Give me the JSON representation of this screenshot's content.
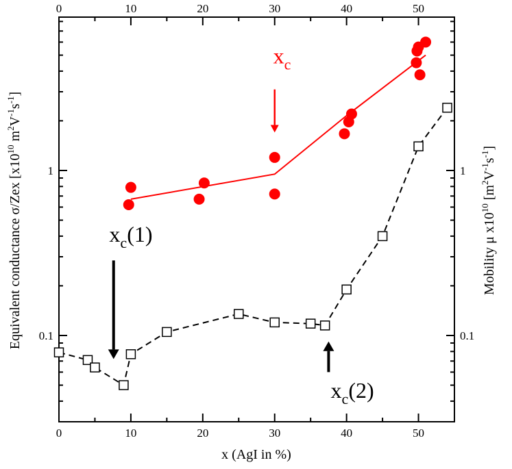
{
  "chart_data": {
    "type": "scatter",
    "xlabel": "x (AgI in %)",
    "ylabel_left_prefix": "Equivalent conductance ",
    "ylabel_left_sigma": "σ/Zex",
    "ylabel_left_unit": "[x10",
    "ylabel_left_exp": "10",
    "ylabel_left_tail": " m",
    "ylabel_left_sup2": "2",
    "ylabel_left_V": "V",
    "ylabel_left_supV": "-1",
    "ylabel_left_s": "s",
    "ylabel_left_sups": "-1",
    "ylabel_left_close": "]",
    "ylabel_right_prefix": "Mobility μ x10",
    "ylabel_right_exp": "10",
    "ylabel_right_unit": " [m",
    "ylabel_right_sup2": "2",
    "ylabel_right_V": "V",
    "ylabel_right_supV": "-1",
    "ylabel_right_s": "s",
    "ylabel_right_sups": "-1",
    "ylabel_right_close": "]",
    "xlim": [
      0,
      55
    ],
    "ylim_log": [
      0.03,
      8.5
    ],
    "x_ticks": [
      0,
      10,
      20,
      30,
      40,
      50
    ],
    "x_tick_labels": [
      "0",
      "10",
      "20",
      "30",
      "40",
      "50"
    ],
    "y_ticks": [
      0.1,
      1
    ],
    "y_tick_labels": [
      "0.1",
      "1"
    ],
    "series": [
      {
        "name": "Equivalent conductance (filled circles)",
        "color": "#ff0000",
        "marker": "filled-circle",
        "points": [
          {
            "x": 9.7,
            "y": 0.62
          },
          {
            "x": 10.0,
            "y": 0.79
          },
          {
            "x": 19.5,
            "y": 0.67
          },
          {
            "x": 20.2,
            "y": 0.84
          },
          {
            "x": 30.0,
            "y": 0.72
          },
          {
            "x": 30.0,
            "y": 1.2
          },
          {
            "x": 39.7,
            "y": 1.67
          },
          {
            "x": 40.3,
            "y": 1.97
          },
          {
            "x": 40.7,
            "y": 2.2
          },
          {
            "x": 49.7,
            "y": 4.5
          },
          {
            "x": 49.8,
            "y": 5.3
          },
          {
            "x": 50.2,
            "y": 3.8
          },
          {
            "x": 50.0,
            "y": 5.6
          },
          {
            "x": 51.0,
            "y": 6.0
          }
        ]
      },
      {
        "name": "Conductance fit",
        "color": "#ff0000",
        "style": "solid",
        "points": [
          {
            "x": 10,
            "y": 0.67
          },
          {
            "x": 30,
            "y": 0.95
          },
          {
            "x": 40,
            "y": 2.15
          },
          {
            "x": 51,
            "y": 5.0
          }
        ]
      },
      {
        "name": "Mobility (open squares)",
        "color": "#000000",
        "marker": "open-square",
        "style": "dashed",
        "points": [
          {
            "x": 0,
            "y": 0.079
          },
          {
            "x": 4,
            "y": 0.071
          },
          {
            "x": 5,
            "y": 0.064
          },
          {
            "x": 9,
            "y": 0.05
          },
          {
            "x": 10,
            "y": 0.077
          },
          {
            "x": 15,
            "y": 0.105
          },
          {
            "x": 25,
            "y": 0.135
          },
          {
            "x": 30,
            "y": 0.12
          },
          {
            "x": 35,
            "y": 0.118
          },
          {
            "x": 37,
            "y": 0.115
          },
          {
            "x": 40,
            "y": 0.19
          },
          {
            "x": 45,
            "y": 0.4
          },
          {
            "x": 50,
            "y": 1.4
          },
          {
            "x": 54,
            "y": 2.4
          }
        ]
      }
    ],
    "annotations": [
      {
        "id": "xc",
        "main": "x",
        "sub": "c",
        "paren": "",
        "color": "#ff0000",
        "x": 29.8,
        "y": 4.45
      },
      {
        "id": "xc1",
        "main": "x",
        "sub": "c",
        "paren": "(1)",
        "color": "#000000",
        "x": 7.0,
        "y": 0.37
      },
      {
        "id": "xc2",
        "main": "x",
        "sub": "c",
        "paren": "(2)",
        "color": "#000000",
        "x": 37.8,
        "y": 0.042
      }
    ],
    "arrows": [
      {
        "id": "arrow-xc",
        "color": "#ff0000",
        "width": 2.5,
        "x": 30.0,
        "y_from": 3.1,
        "y_to": 1.7
      },
      {
        "id": "arrow-xc1",
        "color": "#000000",
        "width": 4,
        "x": 7.6,
        "y_from": 0.285,
        "y_to": 0.072
      },
      {
        "id": "arrow-xc2",
        "color": "#000000",
        "width": 4,
        "x": 37.5,
        "y_from": 0.06,
        "y_to": 0.092
      }
    ]
  }
}
